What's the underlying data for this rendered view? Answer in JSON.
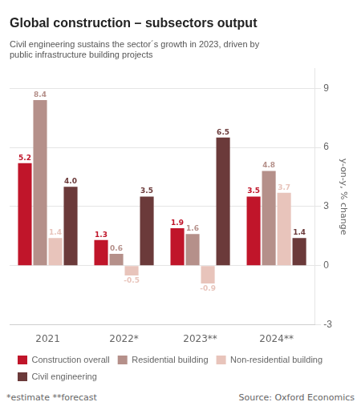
{
  "chart_data": {
    "type": "bar",
    "title": "Global construction – subsectors output",
    "subtitle": "Civil engineering sustains the sector´s growth in 2023, driven by\npublic infrastructure building projects",
    "ylabel": "y-on-y, % change",
    "annotations": [
      "*estimate  **forecast",
      "Source: Oxford Economics"
    ],
    "categories": [
      "2021",
      "2022*",
      "2023**",
      "2024**"
    ],
    "series": [
      {
        "name": "Construction overall",
        "color": "#c0152a",
        "values": [
          5.2,
          1.3,
          1.9,
          3.5
        ],
        "value_labels": [
          "5.2",
          "1.3",
          "1.9",
          "3.5"
        ]
      },
      {
        "name": "Residential building",
        "color": "#b5908a",
        "values": [
          8.4,
          0.6,
          1.6,
          4.8
        ],
        "value_labels": [
          "8.4",
          "0.6",
          "1.6",
          "4.8"
        ]
      },
      {
        "name": "Non-residential building",
        "color": "#e8c4bb",
        "values": [
          1.4,
          -0.5,
          -0.9,
          3.7
        ],
        "value_labels": [
          "1.4",
          "-0.5",
          "-0.9",
          "3.7"
        ]
      },
      {
        "name": "Civil engineering",
        "color": "#6b3a3a",
        "values": [
          4.0,
          3.5,
          6.5,
          1.4
        ],
        "value_labels": [
          "4.0",
          "3.5",
          "6.5",
          "1.4"
        ]
      }
    ],
    "ylim": [
      -3,
      10
    ],
    "yticks": [
      -3,
      0,
      3,
      6,
      9
    ],
    "grid": true,
    "legend": "lower left",
    "data_labels": true
  }
}
